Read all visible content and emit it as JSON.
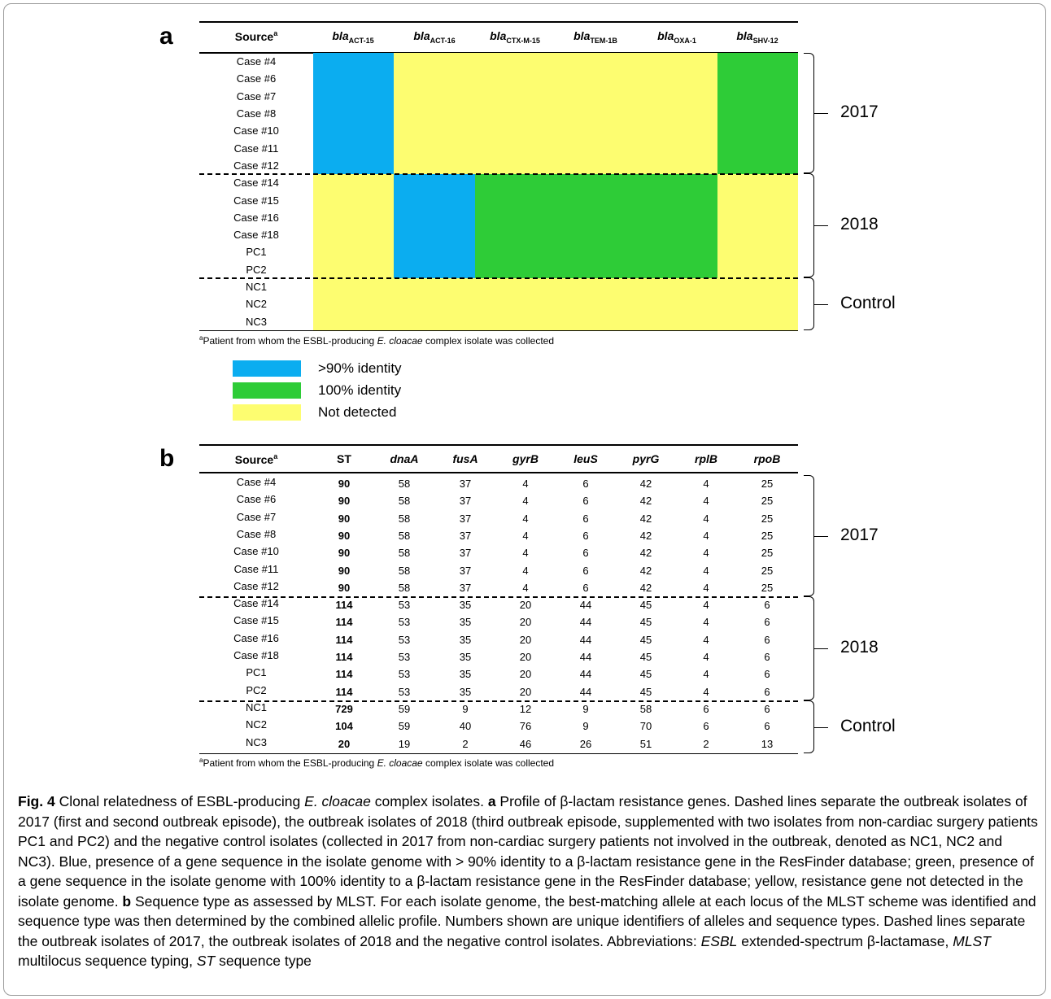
{
  "panel_a": {
    "letter": "a",
    "headers": [
      {
        "main": "Source",
        "sup": "a"
      },
      {
        "main": "bla",
        "sub": "ACT-15"
      },
      {
        "main": "bla",
        "sub": "ACT-16"
      },
      {
        "main": "bla",
        "sub": "CTX-M-15"
      },
      {
        "main": "bla",
        "sub": "TEM-1B"
      },
      {
        "main": "bla",
        "sub": "OXA-1"
      },
      {
        "main": "bla",
        "sub": "SHV-12"
      }
    ],
    "rows": [
      "Case #4",
      "Case #6",
      "Case #7",
      "Case #8",
      "Case #10",
      "Case #11",
      "Case #12",
      "Case #14",
      "Case #15",
      "Case #16",
      "Case #18",
      "PC1",
      "PC2",
      "NC1",
      "NC2",
      "NC3"
    ],
    "groups": [
      "2017",
      "2018",
      "Control"
    ],
    "footnote": {
      "sup": "a",
      "pre": "Patient from whom the ESBL-producing ",
      "italic": "E. cloacae",
      "post": " complex isolate was collected"
    },
    "legend": [
      {
        "label": ">90% identity",
        "color": "#0badf0"
      },
      {
        "label": "100% identity",
        "color": "#2ecc37"
      },
      {
        "label": "Not detected",
        "color": "#fdfd70"
      }
    ]
  },
  "chart_data": {
    "type": "heatmap",
    "columns": [
      "blaACT-15",
      "blaACT-16",
      "blaCTX-M-15",
      "blaTEM-1B",
      "blaOXA-1",
      "blaSHV-12"
    ],
    "rows": [
      "Case #4",
      "Case #6",
      "Case #7",
      "Case #8",
      "Case #10",
      "Case #11",
      "Case #12",
      "Case #14",
      "Case #15",
      "Case #16",
      "Case #18",
      "PC1",
      "PC2",
      "NC1",
      "NC2",
      "NC3"
    ],
    "values": [
      [
        ">90%",
        "ND",
        "ND",
        "ND",
        "ND",
        "100%"
      ],
      [
        ">90%",
        "ND",
        "ND",
        "ND",
        "ND",
        "100%"
      ],
      [
        ">90%",
        "ND",
        "ND",
        "ND",
        "ND",
        "100%"
      ],
      [
        ">90%",
        "ND",
        "ND",
        "ND",
        "ND",
        "100%"
      ],
      [
        ">90%",
        "ND",
        "ND",
        "ND",
        "ND",
        "100%"
      ],
      [
        ">90%",
        "ND",
        "ND",
        "ND",
        "ND",
        "100%"
      ],
      [
        ">90%",
        "ND",
        "ND",
        "ND",
        "ND",
        "100%"
      ],
      [
        "ND",
        ">90%",
        "100%",
        "100%",
        "100%",
        "ND"
      ],
      [
        "ND",
        ">90%",
        "100%",
        "100%",
        "100%",
        "ND"
      ],
      [
        "ND",
        ">90%",
        "100%",
        "100%",
        "100%",
        "ND"
      ],
      [
        "ND",
        ">90%",
        "100%",
        "100%",
        "100%",
        "ND"
      ],
      [
        "ND",
        ">90%",
        "100%",
        "100%",
        "100%",
        "ND"
      ],
      [
        "ND",
        ">90%",
        "100%",
        "100%",
        "100%",
        "ND"
      ],
      [
        "ND",
        "ND",
        "ND",
        "ND",
        "ND",
        "ND"
      ],
      [
        "ND",
        "ND",
        "ND",
        "ND",
        "ND",
        "ND"
      ],
      [
        "ND",
        "ND",
        "ND",
        "ND",
        "ND",
        "ND"
      ]
    ],
    "codes": {
      ">90%": ">90% identity",
      "100%": "100% identity",
      "ND": "Not detected"
    }
  },
  "panel_b": {
    "letter": "b",
    "headers": [
      {
        "text": "Source",
        "sup": "a",
        "italic": false
      },
      {
        "text": "ST",
        "italic": false
      },
      {
        "text": "dnaA",
        "italic": true
      },
      {
        "text": "fusA",
        "italic": true
      },
      {
        "text": "gyrB",
        "italic": true
      },
      {
        "text": "leuS",
        "italic": true
      },
      {
        "text": "pyrG",
        "italic": true
      },
      {
        "text": "rplB",
        "italic": true
      },
      {
        "text": "rpoB",
        "italic": true
      }
    ],
    "rows": [
      [
        "Case #4",
        "90",
        "58",
        "37",
        "4",
        "6",
        "42",
        "4",
        "25"
      ],
      [
        "Case #6",
        "90",
        "58",
        "37",
        "4",
        "6",
        "42",
        "4",
        "25"
      ],
      [
        "Case #7",
        "90",
        "58",
        "37",
        "4",
        "6",
        "42",
        "4",
        "25"
      ],
      [
        "Case #8",
        "90",
        "58",
        "37",
        "4",
        "6",
        "42",
        "4",
        "25"
      ],
      [
        "Case #10",
        "90",
        "58",
        "37",
        "4",
        "6",
        "42",
        "4",
        "25"
      ],
      [
        "Case #11",
        "90",
        "58",
        "37",
        "4",
        "6",
        "42",
        "4",
        "25"
      ],
      [
        "Case #12",
        "90",
        "58",
        "37",
        "4",
        "6",
        "42",
        "4",
        "25"
      ],
      [
        "Case #14",
        "114",
        "53",
        "35",
        "20",
        "44",
        "45",
        "4",
        "6"
      ],
      [
        "Case #15",
        "114",
        "53",
        "35",
        "20",
        "44",
        "45",
        "4",
        "6"
      ],
      [
        "Case #16",
        "114",
        "53",
        "35",
        "20",
        "44",
        "45",
        "4",
        "6"
      ],
      [
        "Case #18",
        "114",
        "53",
        "35",
        "20",
        "44",
        "45",
        "4",
        "6"
      ],
      [
        "PC1",
        "114",
        "53",
        "35",
        "20",
        "44",
        "45",
        "4",
        "6"
      ],
      [
        "PC2",
        "114",
        "53",
        "35",
        "20",
        "44",
        "45",
        "4",
        "6"
      ],
      [
        "NC1",
        "729",
        "59",
        "9",
        "12",
        "9",
        "58",
        "6",
        "6"
      ],
      [
        "NC2",
        "104",
        "59",
        "40",
        "76",
        "9",
        "70",
        "6",
        "6"
      ],
      [
        "NC3",
        "20",
        "19",
        "2",
        "46",
        "26",
        "51",
        "2",
        "13"
      ]
    ],
    "groups": [
      "2017",
      "2018",
      "Control"
    ],
    "footnote": {
      "sup": "a",
      "pre": "Patient from whom the ESBL-producing ",
      "italic": "E. cloacae",
      "post": " complex isolate was collected"
    }
  },
  "caption": {
    "fig_label": "Fig. 4",
    "title": " Clonal relatedness of ESBL-producing ",
    "title_italic": "E. cloacae",
    "title_end": " complex isolates. ",
    "a_label": "a",
    "a_text": " Profile of β-lactam resistance genes. Dashed lines separate the outbreak isolates of 2017 (first and second outbreak episode), the outbreak isolates of 2018 (third outbreak episode, supplemented with two isolates from non-cardiac surgery patients PC1 and PC2) and the negative control isolates (collected in 2017 from non-cardiac surgery patients not involved in the outbreak, denoted as NC1, NC2 and NC3). Blue, presence of a gene sequence in the isolate genome with > 90% identity to a β-lactam resistance gene in the ResFinder database; green, presence of a gene sequence in the isolate genome with 100% identity to a β-lactam resistance gene in the ResFinder database; yellow, resistance gene not detected in the isolate genome. ",
    "b_label": "b",
    "b_text": " Sequence type as assessed by MLST. For each isolate genome, the best-matching allele at each locus of the MLST scheme was identified and sequence type was then determined by the combined allelic profile. Numbers shown are unique identifiers of alleles and sequence types. Dashed lines separate the outbreak isolates of 2017, the outbreak isolates of 2018 and the negative control isolates. Abbreviations: ",
    "abbr1": "ESBL",
    "abbr1_text": " extended-spectrum β-lactamase, ",
    "abbr2": "MLST",
    "abbr2_text": " multilocus sequence typing, ",
    "abbr3": "ST",
    "abbr3_text": " sequence type"
  }
}
